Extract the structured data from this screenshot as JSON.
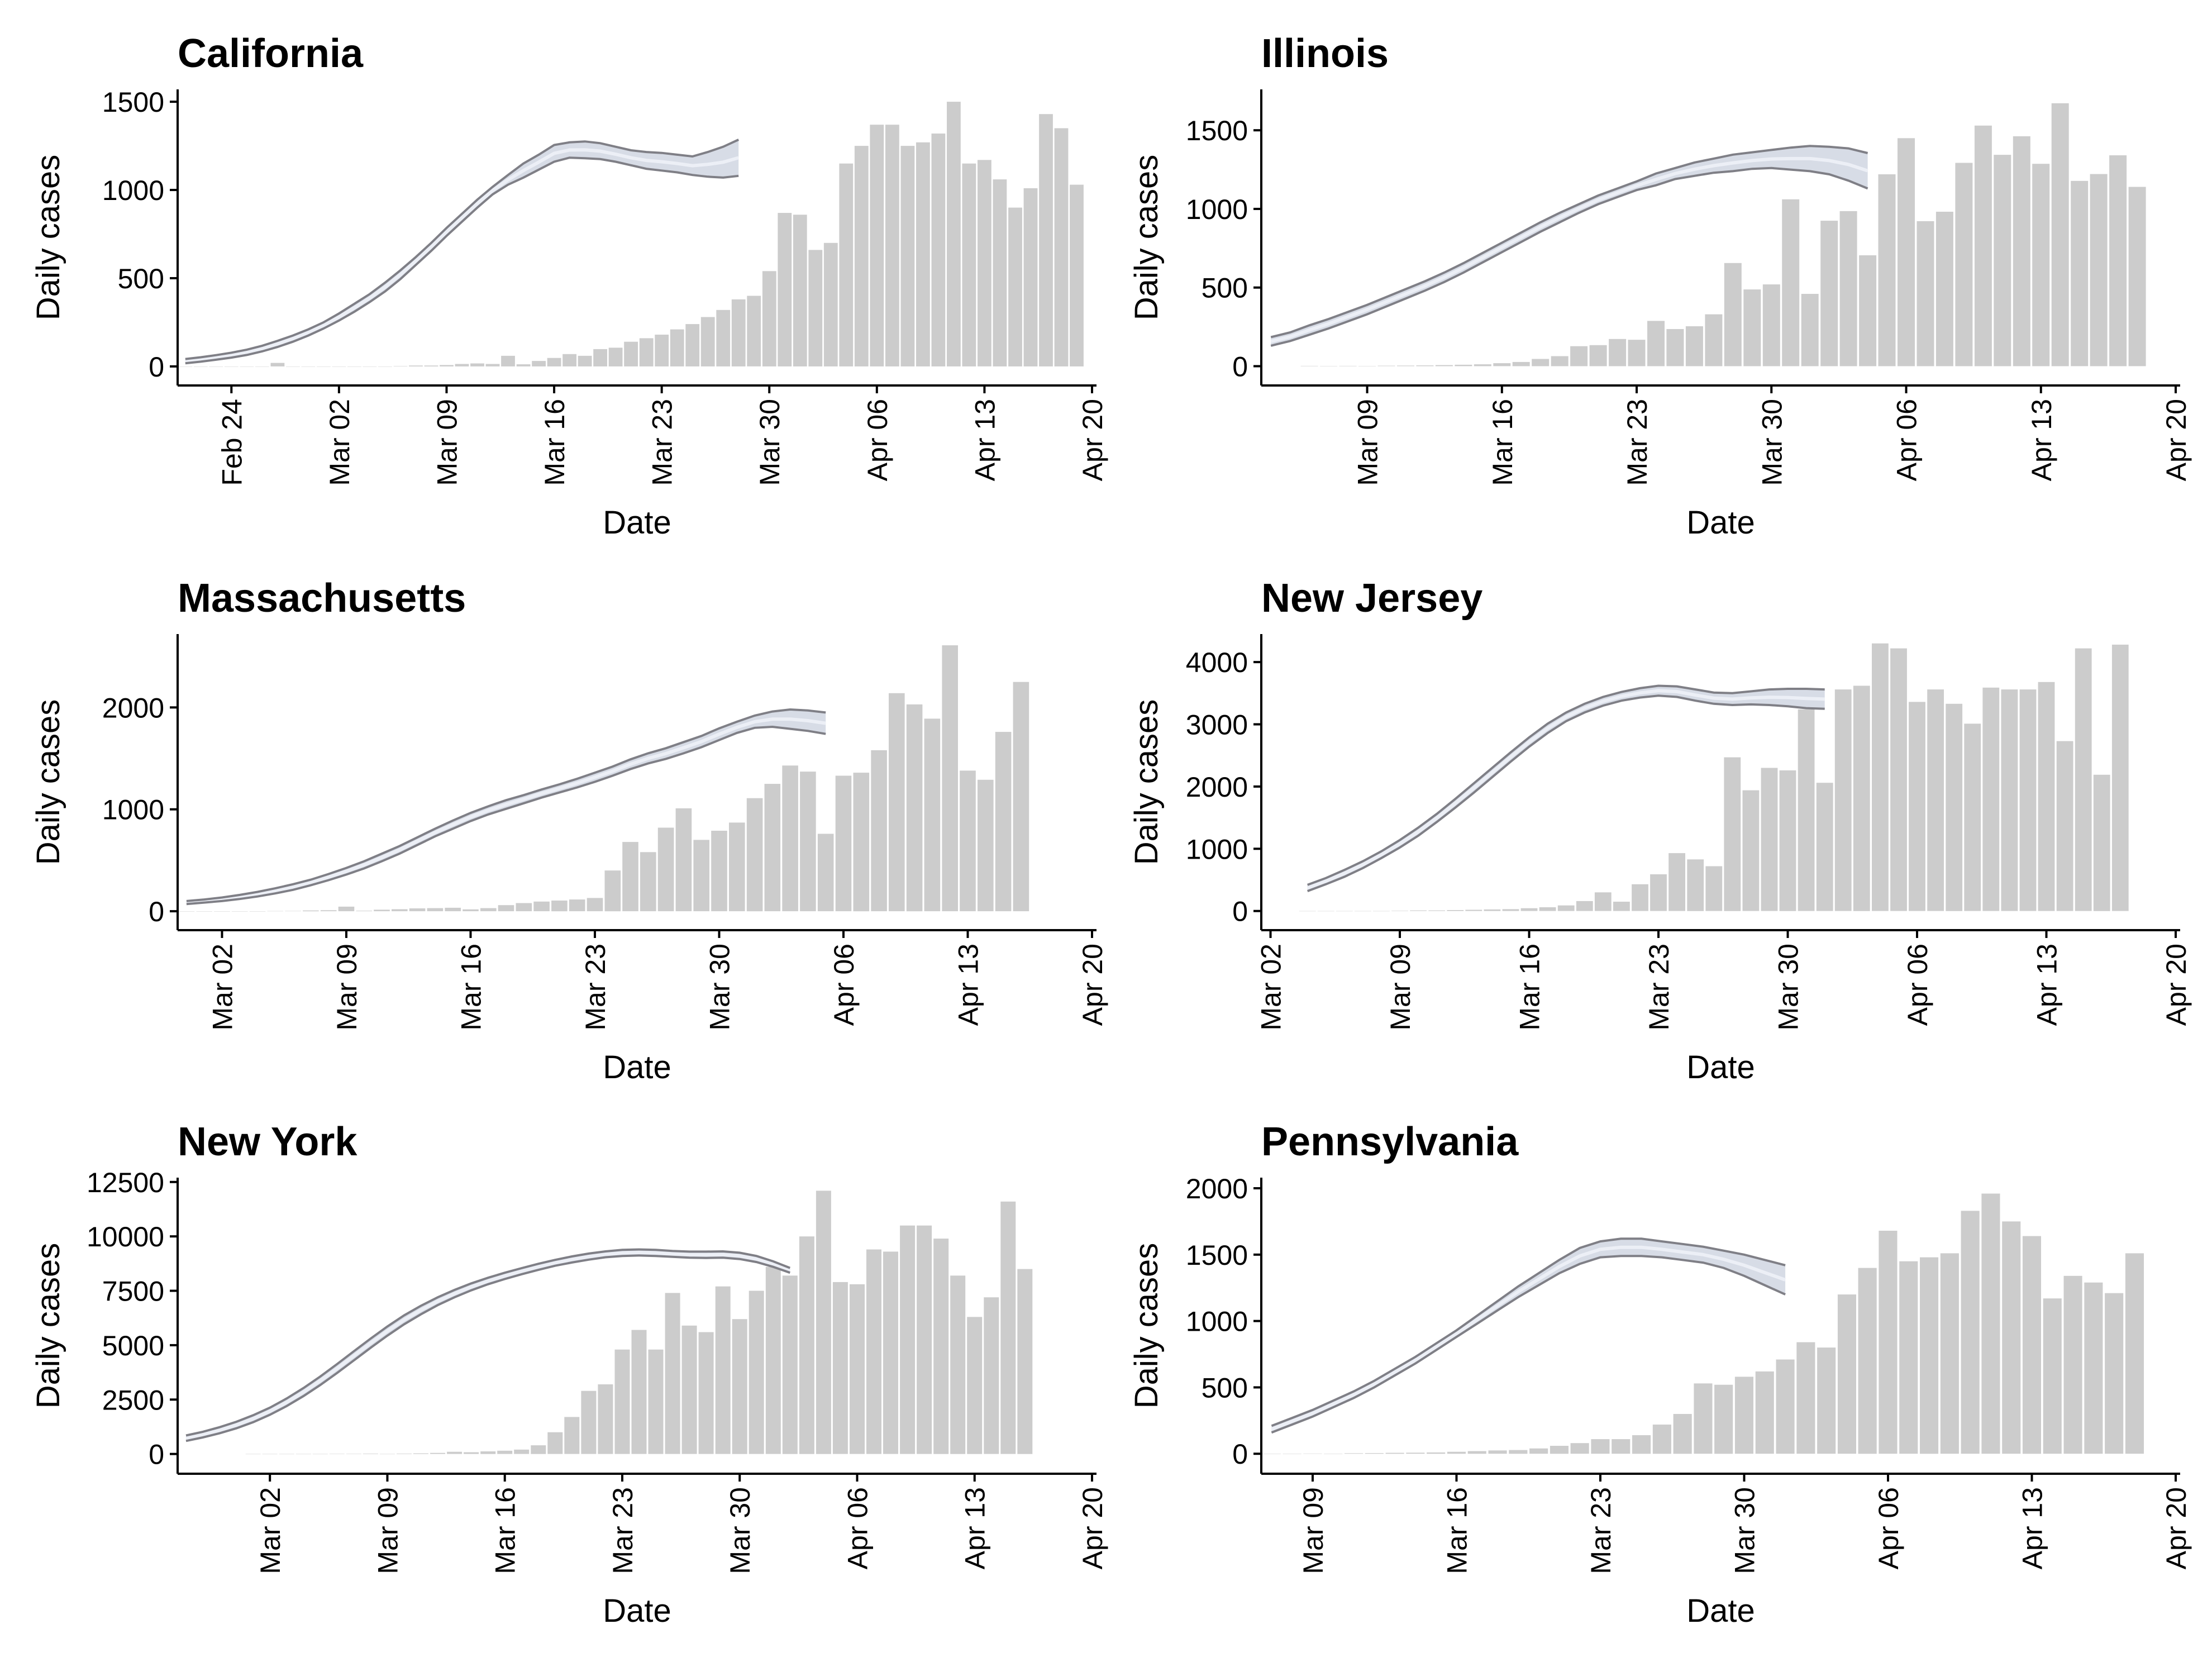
{
  "colors": {
    "bar": "#cccccc",
    "band_fill": "#c9d0de",
    "band_edge": "#7f7f86",
    "center_line": "#eef1f7",
    "axis": "#000000"
  },
  "chart_data": [
    {
      "type": "bar",
      "title": "California",
      "xlabel": "Date",
      "ylabel": "Daily cases",
      "date_start": "Feb 21",
      "x_ticks": [
        "Feb 24",
        "Mar 02",
        "Mar 09",
        "Mar 16",
        "Mar 23",
        "Mar 30",
        "Apr 06",
        "Apr 13",
        "Apr 20"
      ],
      "y_ticks": [
        0,
        500,
        1000,
        1500
      ],
      "ylim": [
        -70,
        1570
      ],
      "bars": {
        "start_date": "Feb 21",
        "values": [
          0,
          0,
          0,
          0,
          0,
          0,
          20,
          0,
          0,
          0,
          0,
          0,
          0,
          0,
          2,
          5,
          5,
          8,
          14,
          17,
          14,
          60,
          12,
          31,
          48,
          70,
          60,
          98,
          106,
          140,
          160,
          180,
          210,
          240,
          280,
          320,
          380,
          400,
          540,
          870,
          860,
          660,
          700,
          1150,
          1250,
          1370,
          1370,
          1250,
          1270,
          1320,
          1500,
          1150,
          1170,
          1060,
          900,
          1010,
          1430,
          1350,
          1030
        ]
      },
      "trend": {
        "start_date": "Feb 21",
        "lower": [
          18,
          27,
          38,
          50,
          65,
          85,
          110,
          140,
          175,
          215,
          260,
          310,
          365,
          425,
          495,
          575,
          655,
          740,
          820,
          900,
          975,
          1030,
          1070,
          1115,
          1160,
          1183,
          1180,
          1175,
          1160,
          1140,
          1120,
          1110,
          1100,
          1085,
          1075,
          1070,
          1080
        ],
        "upper": [
          42,
          52,
          64,
          78,
          95,
          117,
          145,
          175,
          210,
          250,
          300,
          355,
          410,
          475,
          545,
          620,
          700,
          785,
          865,
          945,
          1018,
          1085,
          1150,
          1200,
          1255,
          1270,
          1275,
          1265,
          1245,
          1225,
          1215,
          1210,
          1200,
          1190,
          1215,
          1245,
          1285
        ]
      }
    },
    {
      "type": "bar",
      "title": "Illinois",
      "xlabel": "Date",
      "ylabel": "Daily cases",
      "date_start": "Mar 04",
      "x_ticks": [
        "Mar 09",
        "Mar 16",
        "Mar 23",
        "Mar 30",
        "Apr 06",
        "Apr 13",
        "Apr 20"
      ],
      "y_ticks": [
        0,
        500,
        1000,
        1500
      ],
      "ylim": [
        -80,
        1760
      ],
      "bars": {
        "start_date": "Mar 06",
        "values": [
          2,
          0,
          2,
          0,
          3,
          4,
          5,
          7,
          9,
          12,
          19,
          27,
          46,
          64,
          127,
          134,
          173,
          168,
          288,
          236,
          254,
          330,
          656,
          488,
          520,
          1061,
          460,
          925,
          986,
          705,
          1220,
          1450,
          922,
          982,
          1293,
          1530,
          1344,
          1462,
          1287,
          1672,
          1178,
          1222,
          1341,
          1140
        ]
      },
      "trend": {
        "start_date": "Mar 04",
        "lower": [
          130,
          160,
          200,
          240,
          285,
          330,
          380,
          430,
          480,
          535,
          595,
          660,
          725,
          790,
          855,
          915,
          975,
          1030,
          1075,
          1120,
          1150,
          1190,
          1210,
          1230,
          1240,
          1255,
          1260,
          1250,
          1240,
          1220,
          1180,
          1130
        ],
        "upper": [
          185,
          215,
          260,
          300,
          345,
          390,
          440,
          490,
          540,
          595,
          655,
          720,
          785,
          850,
          915,
          975,
          1030,
          1085,
          1130,
          1175,
          1225,
          1260,
          1295,
          1320,
          1345,
          1360,
          1375,
          1390,
          1400,
          1395,
          1385,
          1355
        ]
      }
    },
    {
      "type": "bar",
      "title": "Massachusetts",
      "xlabel": "Date",
      "ylabel": "Daily cases",
      "date_start": "Feb 29",
      "x_ticks": [
        "Mar 02",
        "Mar 09",
        "Mar 16",
        "Mar 23",
        "Mar 30",
        "Apr 06",
        "Apr 13",
        "Apr 20"
      ],
      "y_ticks": [
        0,
        1000,
        2000
      ],
      "ylim": [
        -120,
        2720
      ],
      "bars": {
        "start_date": "Feb 29",
        "values": [
          0,
          0,
          0,
          0,
          0,
          2,
          3,
          8,
          10,
          45,
          5,
          15,
          20,
          28,
          30,
          34,
          18,
          30,
          60,
          80,
          95,
          105,
          115,
          130,
          400,
          680,
          580,
          820,
          1010,
          700,
          790,
          870,
          1110,
          1250,
          1430,
          1370,
          760,
          1330,
          1360,
          1580,
          2140,
          2030,
          1890,
          2610,
          1380,
          1290,
          1760,
          2250
        ]
      },
      "trend": {
        "start_date": "Feb 29",
        "lower": [
          70,
          85,
          100,
          120,
          145,
          175,
          210,
          255,
          305,
          360,
          420,
          490,
          565,
          650,
          735,
          810,
          885,
          950,
          1005,
          1060,
          1115,
          1165,
          1215,
          1270,
          1330,
          1395,
          1450,
          1495,
          1550,
          1610,
          1680,
          1750,
          1800,
          1810,
          1790,
          1770,
          1740
        ],
        "upper": [
          100,
          115,
          135,
          160,
          190,
          225,
          265,
          310,
          365,
          425,
          490,
          565,
          640,
          725,
          810,
          890,
          965,
          1030,
          1090,
          1140,
          1195,
          1245,
          1300,
          1360,
          1420,
          1490,
          1550,
          1600,
          1660,
          1720,
          1795,
          1860,
          1920,
          1960,
          1980,
          1970,
          1950
        ]
      }
    },
    {
      "type": "bar",
      "title": "New Jersey",
      "xlabel": "Date",
      "ylabel": "Daily cases",
      "date_start": "Mar 02",
      "x_ticks": [
        "Mar 02",
        "Mar 09",
        "Mar 16",
        "Mar 23",
        "Mar 30",
        "Apr 06",
        "Apr 13",
        "Apr 20"
      ],
      "y_ticks": [
        0,
        1000,
        2000,
        3000,
        4000
      ],
      "ylim": [
        -200,
        4450
      ],
      "bars": {
        "start_date": "Mar 04",
        "values": [
          0,
          0,
          0,
          0,
          0,
          5,
          10,
          10,
          15,
          20,
          25,
          30,
          45,
          60,
          90,
          160,
          300,
          150,
          430,
          590,
          930,
          830,
          720,
          2470,
          1940,
          2300,
          2260,
          3240,
          2060,
          3560,
          3620,
          4300,
          4220,
          3360,
          3560,
          3330,
          3010,
          3590,
          3560,
          3560,
          3680,
          2730,
          4220,
          2190,
          4280
        ]
      },
      "trend": {
        "start_date": "Mar 04",
        "lower": [
          320,
          430,
          550,
          690,
          850,
          1020,
          1210,
          1430,
          1660,
          1900,
          2150,
          2400,
          2640,
          2860,
          3050,
          3190,
          3300,
          3380,
          3430,
          3460,
          3440,
          3380,
          3330,
          3310,
          3320,
          3310,
          3290,
          3260,
          3250
        ],
        "upper": [
          420,
          530,
          660,
          800,
          960,
          1140,
          1340,
          1560,
          1800,
          2050,
          2300,
          2550,
          2790,
          3010,
          3190,
          3330,
          3440,
          3520,
          3580,
          3620,
          3610,
          3560,
          3510,
          3500,
          3530,
          3560,
          3570,
          3570,
          3560
        ]
      }
    },
    {
      "type": "bar",
      "title": "New York",
      "xlabel": "Date",
      "ylabel": "Daily cases",
      "date_start": "Feb 26",
      "x_ticks": [
        "Mar 02",
        "Mar 09",
        "Mar 16",
        "Mar 23",
        "Mar 30",
        "Apr 06",
        "Apr 13",
        "Apr 20"
      ],
      "y_ticks": [
        0,
        2500,
        5000,
        7500,
        10000,
        12500
      ],
      "ylim": [
        -600,
        12700
      ],
      "bars": {
        "start_date": "Mar 01",
        "values": [
          0,
          0,
          0,
          0,
          0,
          5,
          10,
          20,
          0,
          20,
          30,
          50,
          100,
          80,
          120,
          150,
          200,
          400,
          1000,
          1700,
          2900,
          3200,
          4800,
          5700,
          4800,
          7400,
          5900,
          5600,
          7700,
          6200,
          7500,
          8600,
          8200,
          10000,
          12100,
          7900,
          7800,
          9400,
          9300,
          10500,
          10500,
          9900,
          8200,
          6300,
          7200,
          11600,
          8500
        ]
      },
      "trend": {
        "start_date": "Feb 26",
        "lower": [
          600,
          760,
          950,
          1180,
          1460,
          1800,
          2200,
          2660,
          3170,
          3720,
          4300,
          4880,
          5440,
          5960,
          6420,
          6840,
          7200,
          7520,
          7800,
          8040,
          8260,
          8460,
          8650,
          8800,
          8930,
          9040,
          9100,
          9120,
          9100,
          9060,
          9020,
          9010,
          9020,
          8960,
          8820,
          8600,
          8330
        ],
        "upper": [
          850,
          1020,
          1230,
          1480,
          1780,
          2130,
          2550,
          3030,
          3560,
          4130,
          4720,
          5300,
          5860,
          6370,
          6810,
          7200,
          7540,
          7840,
          8100,
          8330,
          8540,
          8740,
          8920,
          9080,
          9210,
          9310,
          9380,
          9400,
          9380,
          9330,
          9300,
          9300,
          9310,
          9250,
          9100,
          8850,
          8550
        ]
      }
    },
    {
      "type": "bar",
      "title": "Pennsylvania",
      "xlabel": "Date",
      "ylabel": "Daily cases",
      "date_start": "Mar 07",
      "x_ticks": [
        "Mar 09",
        "Mar 16",
        "Mar 23",
        "Mar 30",
        "Apr 06",
        "Apr 13",
        "Apr 20"
      ],
      "y_ticks": [
        0,
        500,
        1000,
        1500,
        2000
      ],
      "ylim": [
        -100,
        2080
      ],
      "bars": {
        "start_date": "Mar 07",
        "values": [
          0,
          0,
          2,
          0,
          4,
          5,
          7,
          8,
          10,
          15,
          20,
          25,
          28,
          40,
          60,
          80,
          110,
          110,
          140,
          220,
          300,
          530,
          520,
          580,
          620,
          710,
          840,
          800,
          1200,
          1400,
          1680,
          1450,
          1480,
          1510,
          1830,
          1960,
          1750,
          1640,
          1170,
          1340,
          1290,
          1210,
          1510
        ]
      },
      "trend": {
        "start_date": "Mar 07",
        "lower": [
          160,
          220,
          280,
          350,
          420,
          500,
          590,
          680,
          780,
          880,
          980,
          1080,
          1180,
          1270,
          1360,
          1430,
          1480,
          1490,
          1490,
          1480,
          1460,
          1440,
          1400,
          1340,
          1270,
          1200
        ],
        "upper": [
          210,
          270,
          330,
          400,
          470,
          550,
          640,
          730,
          830,
          930,
          1040,
          1150,
          1260,
          1360,
          1460,
          1550,
          1600,
          1620,
          1620,
          1600,
          1580,
          1560,
          1530,
          1500,
          1460,
          1420
        ]
      }
    }
  ]
}
